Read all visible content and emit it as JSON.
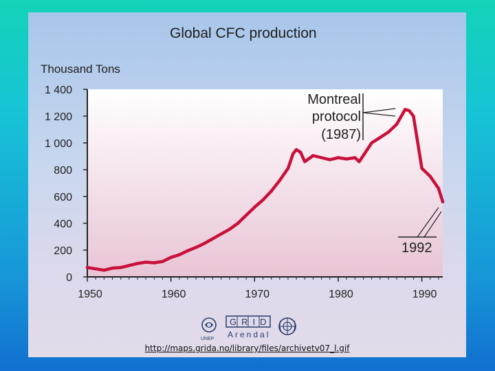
{
  "chart_data": {
    "type": "line",
    "title": "Global CFC production",
    "ylabel": "Thousand Tons",
    "xlabel": "",
    "xlim": [
      1950,
      1992.5
    ],
    "ylim": [
      0,
      1400
    ],
    "x_ticks": [
      1950,
      1960,
      1970,
      1980,
      1990
    ],
    "x_tick_labels": [
      "1950",
      "1960",
      "1970",
      "1980",
      "1990"
    ],
    "y_ticks": [
      0,
      200,
      400,
      600,
      800,
      1000,
      1200,
      1400
    ],
    "y_tick_labels": [
      "0",
      "200",
      "400",
      "600",
      "800",
      "1 000",
      "1 200",
      "1 400"
    ],
    "series": [
      {
        "name": "CFC production",
        "color": "#c8103a",
        "x": [
          1950,
          1951,
          1952,
          1953,
          1954,
          1955,
          1956,
          1957,
          1958,
          1959,
          1960,
          1961,
          1962,
          1963,
          1964,
          1965,
          1966,
          1967,
          1968,
          1969,
          1970,
          1971,
          1972,
          1973,
          1974,
          1974.6,
          1975,
          1975.5,
          1976,
          1977,
          1978,
          1979,
          1980,
          1981,
          1982,
          1982.5,
          1983,
          1984,
          1985,
          1986,
          1987,
          1988,
          1988.5,
          1989,
          1990,
          1991,
          1992,
          1992.5
        ],
        "values": [
          70,
          60,
          50,
          65,
          70,
          85,
          100,
          110,
          105,
          115,
          145,
          165,
          195,
          220,
          250,
          285,
          320,
          355,
          400,
          460,
          520,
          575,
          640,
          720,
          810,
          920,
          950,
          930,
          860,
          905,
          890,
          875,
          890,
          880,
          890,
          860,
          905,
          1000,
          1040,
          1080,
          1140,
          1250,
          1240,
          1200,
          810,
          750,
          660,
          560
        ]
      }
    ],
    "annotations": [
      {
        "lines": [
          "Montreal",
          "protocol",
          "(1987)"
        ],
        "target_x": 1987
      },
      {
        "lines": [
          "1992"
        ],
        "target_x": 1992
      }
    ],
    "grid": false,
    "background_gradient": [
      "#ffffff",
      "#e8c4d6"
    ]
  },
  "logos": {
    "unep": "UNEP",
    "grid": "GRID",
    "arendal": "Arendal"
  },
  "credit_url": "http://maps.grida.no/library/files/archivetv07_l.gif"
}
